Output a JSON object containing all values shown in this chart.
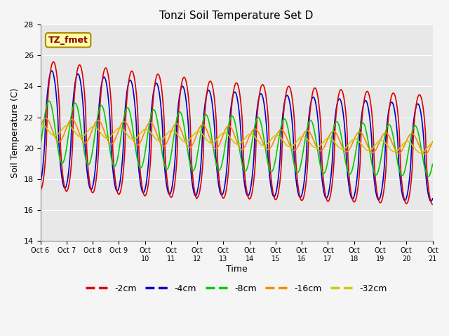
{
  "title": "Tonzi Soil Temperature Set D",
  "xlabel": "Time",
  "ylabel": "Soil Temperature (C)",
  "ylim": [
    14,
    28
  ],
  "annotation_text": "TZ_fmet",
  "series_labels": [
    "-2cm",
    "-4cm",
    "-8cm",
    "-16cm",
    "-32cm"
  ],
  "series_colors": [
    "#dd0000",
    "#0000cc",
    "#00cc00",
    "#ff8800",
    "#cccc00"
  ],
  "tick_labels": [
    "Oct 6",
    "Oct 7",
    "Oct 8",
    "Oct 9",
    "Oct 10",
    "Oct 11",
    "Oct 12",
    "Oct 13",
    "Oct 14",
    "Oct 15",
    "Oct 16",
    "Oct 17",
    "Oct 18",
    "Oct 19",
    "Oct 20",
    "Oct 21"
  ],
  "background_color": "#e8e8e8",
  "grid_color": "#ffffff",
  "figsize": [
    6.4,
    4.8
  ],
  "dpi": 100
}
